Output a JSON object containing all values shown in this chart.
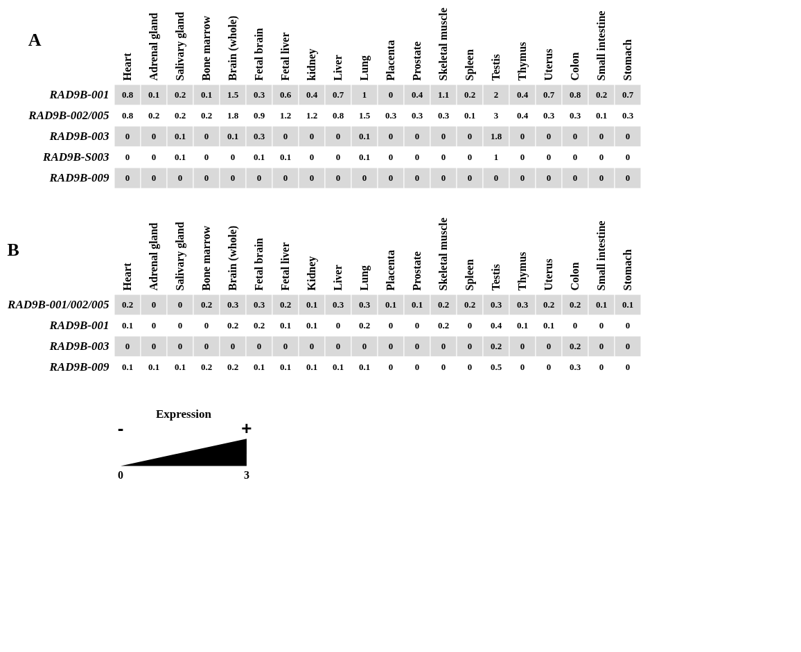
{
  "chart_data": [
    {
      "type": "heatmap",
      "title": "A",
      "categories": [
        "Heart",
        "Adrenal gland",
        "Salivary gland",
        "Bone marrow",
        "Brain (whole)",
        "Fetal brain",
        "Fetal liver",
        "kidney",
        "Liver",
        "Lung",
        "Placenta",
        "Prostate",
        "Skeletal muscle",
        "Spleen",
        "Testis",
        "Thymus",
        "Uterus",
        "Colon",
        "Small intestine",
        "Stomach"
      ],
      "y_categories": [
        "RAD9B-001",
        "RAD9B-002/005",
        "RAD9B-003",
        "RAD9B-S003",
        "RAD9B-009"
      ],
      "cells": [
        [
          0.8,
          0.1,
          0.2,
          0.1,
          1.5,
          0.3,
          0.6,
          0.4,
          0.7,
          1,
          0,
          0.4,
          1.1,
          0.2,
          2,
          0.4,
          0.7,
          0.8,
          0.2,
          0.7
        ],
        [
          0.8,
          0.2,
          0.2,
          0.2,
          1.8,
          0.9,
          1.2,
          1.2,
          0.8,
          1.5,
          0.3,
          0.3,
          0.3,
          0.1,
          3,
          0.4,
          0.3,
          0.3,
          0.1,
          0.3
        ],
        [
          0,
          0,
          0.1,
          0,
          0.1,
          0.3,
          0,
          0,
          0,
          0.1,
          0,
          0,
          0,
          0,
          1.8,
          0,
          0,
          0,
          0,
          0
        ],
        [
          0,
          0,
          0.1,
          0,
          0,
          0.1,
          0.1,
          0,
          0,
          0.1,
          0,
          0,
          0,
          0,
          1,
          0,
          0,
          0,
          0,
          0
        ],
        [
          0,
          0,
          0,
          0,
          0,
          0,
          0,
          0,
          0,
          0,
          0,
          0,
          0,
          0,
          0,
          0,
          0,
          0,
          0,
          0
        ]
      ],
      "data_labels": true
    },
    {
      "type": "heatmap",
      "title": "B",
      "categories": [
        "Heart",
        "Adrenal gland",
        "Salivary gland",
        "Bone marrow",
        "Brain (whole)",
        "Fetal brain",
        "Fetal liver",
        "Kidney",
        "Liver",
        "Lung",
        "Placenta",
        "Prostate",
        "Skeletal muscle",
        "Spleen",
        "Testis",
        "Thymus",
        "Uterus",
        "Colon",
        "Small intestine",
        "Stomach"
      ],
      "y_categories": [
        "RAD9B-001/002/005",
        "RAD9B-001",
        "RAD9B-003",
        "RAD9B-009"
      ],
      "cells": [
        [
          0.2,
          0,
          0,
          0.2,
          0.3,
          0.3,
          0.2,
          0.1,
          0.3,
          0.3,
          0.1,
          0.1,
          0.2,
          0.2,
          0.3,
          0.3,
          0.2,
          0.2,
          0.1,
          0.1
        ],
        [
          0.1,
          0,
          0,
          0,
          0.2,
          0.2,
          0.1,
          0.1,
          0,
          0.2,
          0,
          0,
          0.2,
          0,
          0.4,
          0.1,
          0.1,
          0,
          0,
          0
        ],
        [
          0,
          0,
          0,
          0,
          0,
          0,
          0,
          0,
          0,
          0,
          0,
          0,
          0,
          0,
          0.2,
          0,
          0,
          0.2,
          0,
          0
        ],
        [
          0.1,
          0.1,
          0.1,
          0.2,
          0.2,
          0.1,
          0.1,
          0.1,
          0.1,
          0.1,
          0,
          0,
          0,
          0,
          0.5,
          0,
          0,
          0.3,
          0,
          0
        ]
      ],
      "data_labels": true,
      "annotations": [
        "Expression",
        "-",
        "+",
        "0",
        "3"
      ]
    }
  ]
}
